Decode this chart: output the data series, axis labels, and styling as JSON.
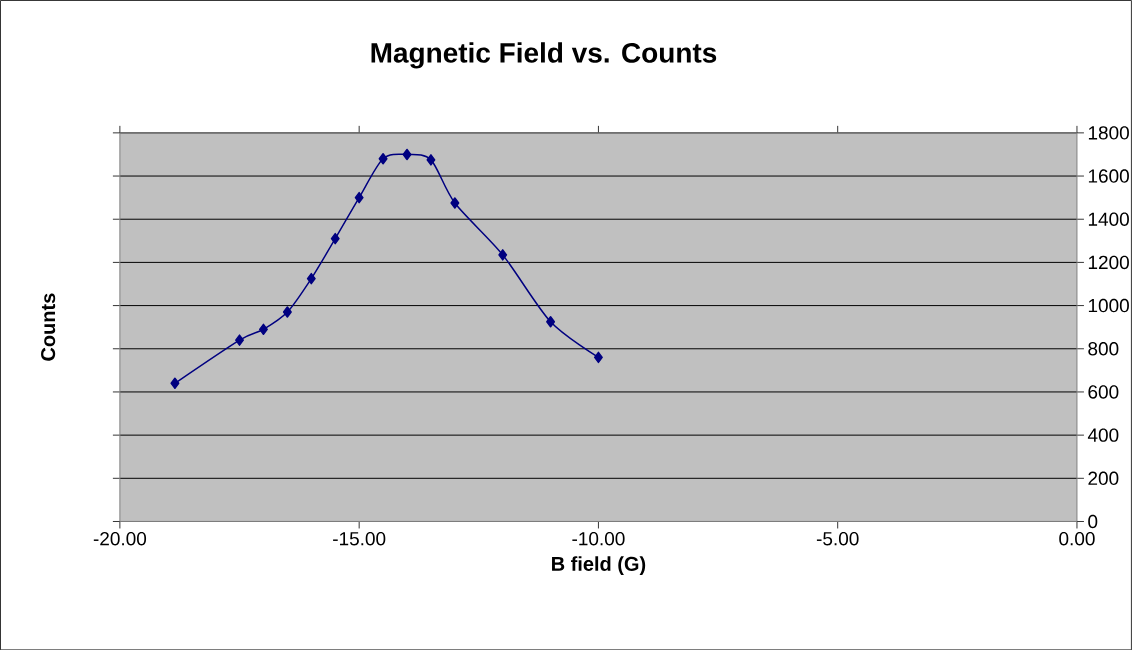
{
  "chart_data": {
    "type": "line",
    "title": "Magnetic Field vs. Counts",
    "xlabel": "B field (G)",
    "ylabel": "Counts",
    "x": [
      -18.85,
      -17.5,
      -17.0,
      -16.5,
      -16.0,
      -15.5,
      -15.0,
      -14.5,
      -14.0,
      -13.5,
      -13.0,
      -12.0,
      -11.0,
      -10.0
    ],
    "values": [
      640,
      840,
      890,
      970,
      1125,
      1310,
      1500,
      1680,
      1700,
      1675,
      1475,
      1235,
      925,
      760
    ],
    "color": "#000080",
    "marker": "diamond",
    "line_style": "solid",
    "grid": "y",
    "xlim": [
      -20,
      0
    ],
    "xticks": [
      {
        "value": -20,
        "label": "-20.00"
      },
      {
        "value": -15,
        "label": "-15.00"
      },
      {
        "value": -10,
        "label": "-10.00"
      },
      {
        "value": -5,
        "label": "-5.00"
      },
      {
        "value": 0,
        "label": "0.00"
      }
    ],
    "ylim": [
      0,
      1800
    ],
    "yticks": [
      0,
      200,
      400,
      600,
      800,
      1000,
      1200,
      1400,
      1600,
      1800
    ]
  }
}
